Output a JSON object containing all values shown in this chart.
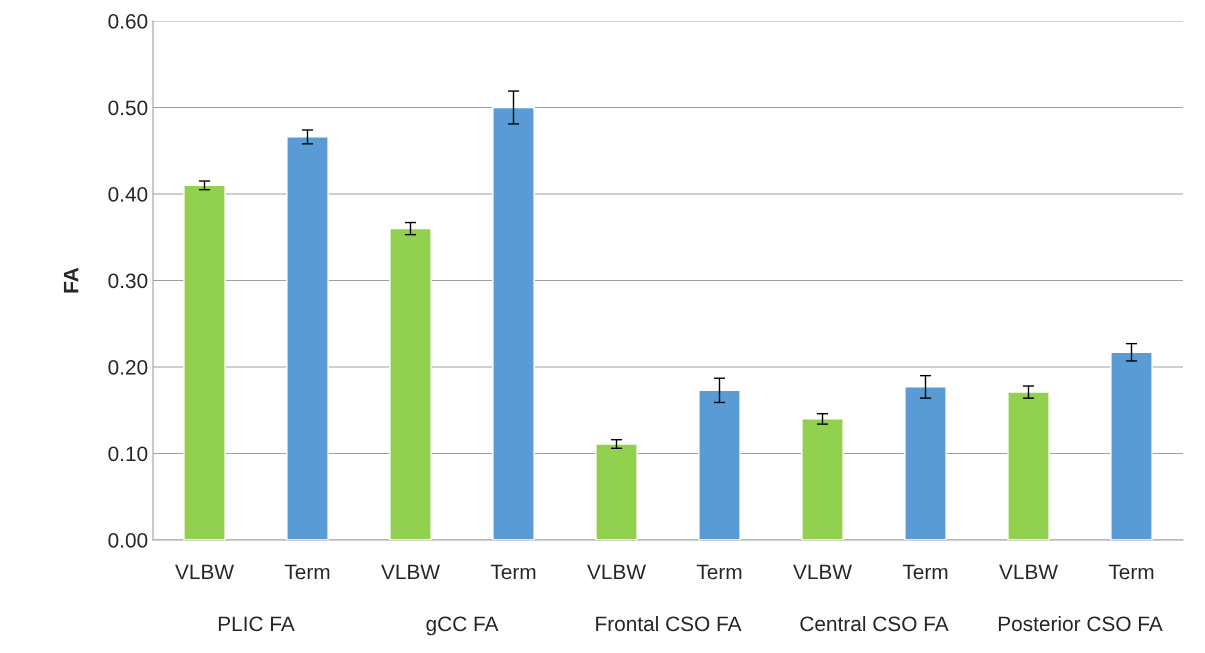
{
  "chart_data": {
    "type": "bar",
    "ylabel": "FA",
    "categories": [
      "PLIC FA",
      "gCC FA",
      "Frontal CSO FA",
      "Central CSO FA",
      "Posterior CSO FA"
    ],
    "series": [
      {
        "name": "VLBW",
        "color": "#92d050",
        "values": [
          0.41,
          0.36,
          0.111,
          0.14,
          0.171
        ],
        "errors": [
          0.005,
          0.007,
          0.005,
          0.006,
          0.007
        ]
      },
      {
        "name": "Term",
        "color": "#5b9bd5",
        "values": [
          0.466,
          0.5,
          0.173,
          0.177,
          0.217
        ],
        "errors": [
          0.008,
          0.019,
          0.014,
          0.013,
          0.01
        ]
      }
    ],
    "ylim": [
      0,
      0.6
    ],
    "yticks": [
      {
        "value": 0,
        "label": "0.00"
      },
      {
        "value": 0.1,
        "label": "0.10"
      },
      {
        "value": 0.2,
        "label": "0.20"
      },
      {
        "value": 0.3,
        "label": "0.30"
      },
      {
        "value": 0.4,
        "label": "0.40"
      },
      {
        "value": 0.5,
        "label": "0.50"
      },
      {
        "value": 0.6,
        "label": "0.60"
      }
    ],
    "grid": "y"
  }
}
